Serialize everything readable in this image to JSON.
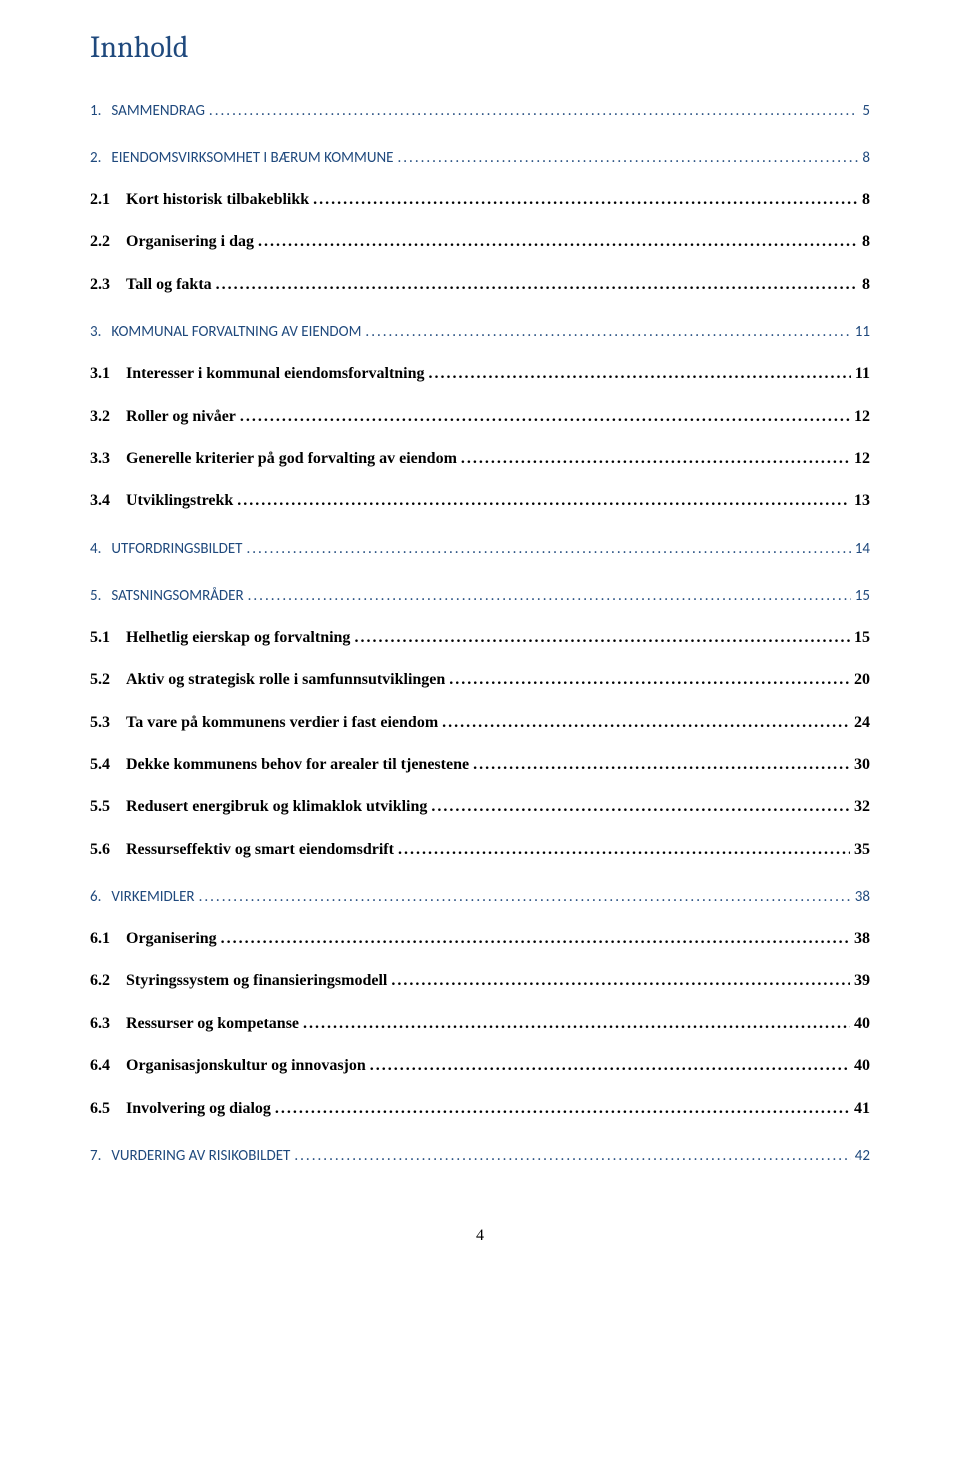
{
  "title": "Innhold",
  "page_number": "4",
  "colors": {
    "heading_blue": "#1f497d",
    "body_black": "#000000",
    "background": "#ffffff"
  },
  "typography": {
    "title_family": "Cambria",
    "title_size_pt": 22,
    "level1_family": "Calibri",
    "level1_size_pt": 11,
    "level2_family": "Times New Roman",
    "level2_size_pt": 12,
    "level2_weight": "bold"
  },
  "toc": [
    {
      "level": 1,
      "number": "1.",
      "label": "SAMMENDRAG",
      "page": "5"
    },
    {
      "level": 1,
      "number": "2.",
      "label": "EIENDOMSVIRKSOMHET I BÆRUM KOMMUNE",
      "page": "8"
    },
    {
      "level": 2,
      "number": "2.1",
      "label": "Kort historisk tilbakeblikk",
      "page": "8"
    },
    {
      "level": 2,
      "number": "2.2",
      "label": "Organisering i dag",
      "page": "8"
    },
    {
      "level": 2,
      "number": "2.3",
      "label": "Tall og fakta",
      "page": "8"
    },
    {
      "level": 1,
      "number": "3.",
      "label": "KOMMUNAL FORVALTNING AV EIENDOM",
      "page": "11"
    },
    {
      "level": 2,
      "number": "3.1",
      "label": "Interesser i kommunal eiendomsforvaltning",
      "page": "11"
    },
    {
      "level": 2,
      "number": "3.2",
      "label": "Roller og nivåer",
      "page": "12"
    },
    {
      "level": 2,
      "number": "3.3",
      "label": "Generelle kriterier på god forvalting av eiendom",
      "page": "12"
    },
    {
      "level": 2,
      "number": "3.4",
      "label": "Utviklingstrekk",
      "page": "13"
    },
    {
      "level": 1,
      "number": "4.",
      "label": "UTFORDRINGSBILDET",
      "page": "14"
    },
    {
      "level": 1,
      "number": "5.",
      "label": "SATSNINGSOMRÅDER",
      "page": "15"
    },
    {
      "level": 2,
      "number": "5.1",
      "label": "Helhetlig eierskap og forvaltning",
      "page": "15"
    },
    {
      "level": 2,
      "number": "5.2",
      "label": "Aktiv og strategisk rolle i samfunnsutviklingen",
      "page": "20"
    },
    {
      "level": 2,
      "number": "5.3",
      "label": "Ta vare på kommunens verdier i fast eiendom",
      "page": "24"
    },
    {
      "level": 2,
      "number": "5.4",
      "label": "Dekke kommunens behov for arealer til tjenestene",
      "page": "30"
    },
    {
      "level": 2,
      "number": "5.5",
      "label": "Redusert energibruk og klimaklok utvikling",
      "page": "32"
    },
    {
      "level": 2,
      "number": "5.6",
      "label": "Ressurseffektiv og smart eiendomsdrift",
      "page": "35"
    },
    {
      "level": 1,
      "number": "6.",
      "label": "VIRKEMIDLER",
      "page": "38"
    },
    {
      "level": 2,
      "number": "6.1",
      "label": "Organisering",
      "page": "38"
    },
    {
      "level": 2,
      "number": "6.2",
      "label": "Styringssystem og finansieringsmodell",
      "page": "39"
    },
    {
      "level": 2,
      "number": "6.3",
      "label": "Ressurser og kompetanse",
      "page": "40"
    },
    {
      "level": 2,
      "number": "6.4",
      "label": "Organisasjonskultur og innovasjon",
      "page": "40"
    },
    {
      "level": 2,
      "number": "6.5",
      "label": "Involvering og dialog",
      "page": "41"
    },
    {
      "level": 1,
      "number": "7.",
      "label": "VURDERING AV RISIKOBILDET",
      "page": "42"
    }
  ]
}
